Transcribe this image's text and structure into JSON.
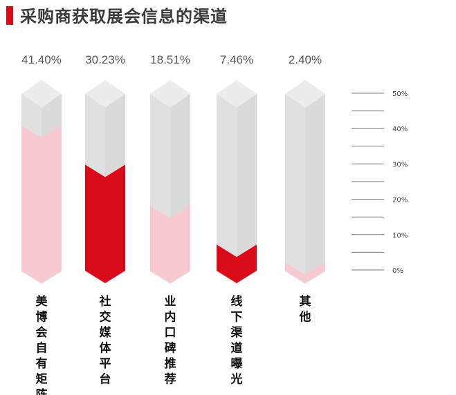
{
  "colors": {
    "accent": "#d90b19",
    "pink": "#f9c9d1",
    "gray": "#e0e0e0",
    "gray_light": "#ececec",
    "gray_dark": "#d5d5d5",
    "value_text": "#555555",
    "axis_text": "#444444",
    "category_text": "#111111",
    "axis_line": "#7a7a7a"
  },
  "chart_data": {
    "type": "bar",
    "title": "采购商获取展会信息的渠道",
    "categories": [
      "美博会自有矩阵",
      "社交媒体平台",
      "业内口碑推荐",
      "线下渠道曝光",
      "其他"
    ],
    "values": [
      41.4,
      30.23,
      18.51,
      7.46,
      2.4
    ],
    "value_labels": [
      "41.40%",
      "30.23%",
      "18.51%",
      "7.46%",
      "2.40%"
    ],
    "bar_fill_colors": [
      "pink",
      "accent",
      "pink",
      "accent",
      "pink"
    ],
    "ylim": [
      0,
      50
    ],
    "y_ticks": [
      {
        "value": 0,
        "label": "0%"
      },
      {
        "value": 10,
        "label": "10%"
      },
      {
        "value": 20,
        "label": "20%"
      },
      {
        "value": 30,
        "label": "30%"
      },
      {
        "value": 40,
        "label": "40%"
      },
      {
        "value": 50,
        "label": "50%"
      }
    ],
    "y_minor_ticks": [
      5,
      15,
      25,
      35,
      45
    ],
    "xlabel": "",
    "ylabel": "",
    "legend": "none",
    "grid": false
  }
}
